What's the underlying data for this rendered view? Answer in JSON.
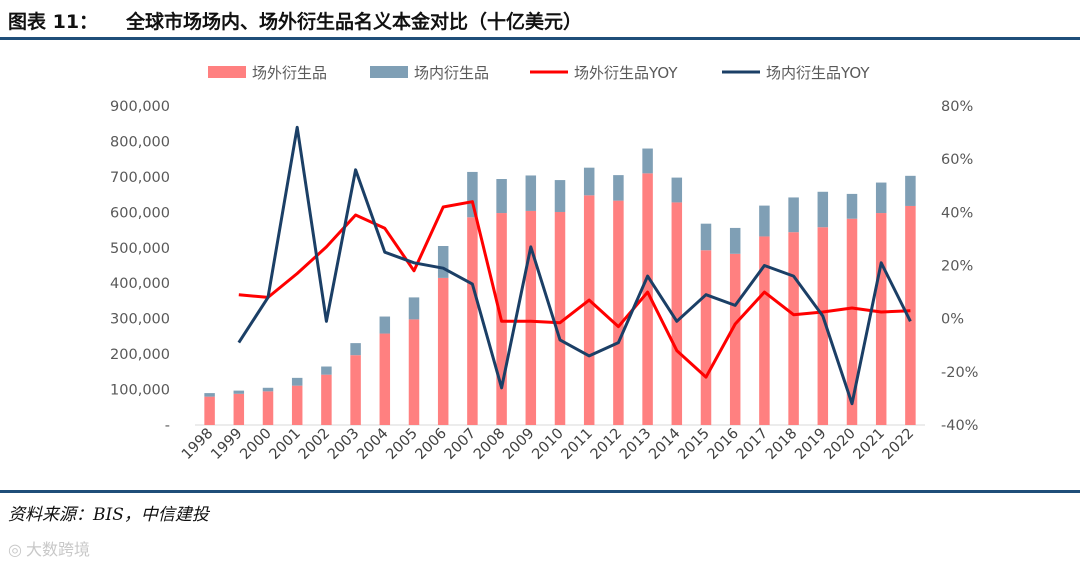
{
  "header": {
    "label": "图表 11：",
    "title": "全球市场场内、场外衍生品名义本金对比（十亿美元）"
  },
  "footer": {
    "source": "资料来源：BIS，中信建投",
    "watermark": "大数跨境",
    "watermark_icon": "logo-icon"
  },
  "colors": {
    "otc_bar": "#ff8080",
    "exchange_bar": "#7f9fb5",
    "otc_yoy": "#ff0000",
    "exchange_yoy": "#1b3f66",
    "rule": "#1f4e79"
  },
  "chart_data": {
    "type": "bar",
    "stacked": true,
    "categories": [
      "1998",
      "1999",
      "2000",
      "2001",
      "2002",
      "2003",
      "2004",
      "2005",
      "2006",
      "2007",
      "2008",
      "2009",
      "2010",
      "2011",
      "2012",
      "2013",
      "2014",
      "2015",
      "2016",
      "2017",
      "2018",
      "2019",
      "2020",
      "2021",
      "2022"
    ],
    "series": [
      {
        "name": "场外衍生品",
        "type": "bar",
        "axis": "left",
        "values": [
          80000,
          88000,
          95000,
          111000,
          142000,
          197000,
          258000,
          298000,
          415000,
          586000,
          598000,
          604000,
          601000,
          648000,
          633000,
          710000,
          628000,
          493000,
          483000,
          532000,
          544000,
          558000,
          582000,
          598000,
          618000
        ]
      },
      {
        "name": "场内衍生品",
        "type": "bar",
        "axis": "left",
        "values": [
          10000,
          9000,
          10000,
          22000,
          23000,
          34000,
          48000,
          62000,
          90000,
          128000,
          96000,
          100000,
          90000,
          78000,
          72000,
          70000,
          70000,
          75000,
          73000,
          87000,
          98000,
          100000,
          70000,
          86000,
          85000
        ]
      },
      {
        "name": "场外衍生品YOY",
        "type": "line",
        "axis": "right",
        "values": [
          null,
          9,
          8,
          17,
          27,
          39,
          34,
          18,
          42,
          44,
          -1,
          -1,
          -1.5,
          7,
          -3,
          10,
          -12,
          -22,
          -2,
          10,
          1.5,
          2.5,
          4,
          2.5,
          3
        ]
      },
      {
        "name": "场内衍生品YOY",
        "type": "line",
        "axis": "right",
        "values": [
          null,
          -9,
          8,
          72,
          -1,
          56,
          25,
          21,
          19,
          13,
          -26,
          27,
          -8,
          -14,
          -9,
          16,
          -1,
          9,
          5,
          20,
          16,
          1,
          -32,
          21,
          -1
        ]
      }
    ],
    "y_left": {
      "range": [
        0,
        900000
      ],
      "ticks": [
        0,
        100000,
        200000,
        300000,
        400000,
        500000,
        600000,
        700000,
        800000,
        900000
      ],
      "tick_labels": [
        "-",
        "100,000",
        "200,000",
        "300,000",
        "400,000",
        "500,000",
        "600,000",
        "700,000",
        "800,000",
        "900,000"
      ]
    },
    "y_right": {
      "range": [
        -40,
        80
      ],
      "ticks": [
        -40,
        -20,
        0,
        20,
        40,
        60,
        80
      ],
      "tick_labels": [
        "-40%",
        "-20%",
        "0%",
        "20%",
        "40%",
        "60%",
        "80%"
      ]
    },
    "legend_position": "top",
    "grid": false
  }
}
